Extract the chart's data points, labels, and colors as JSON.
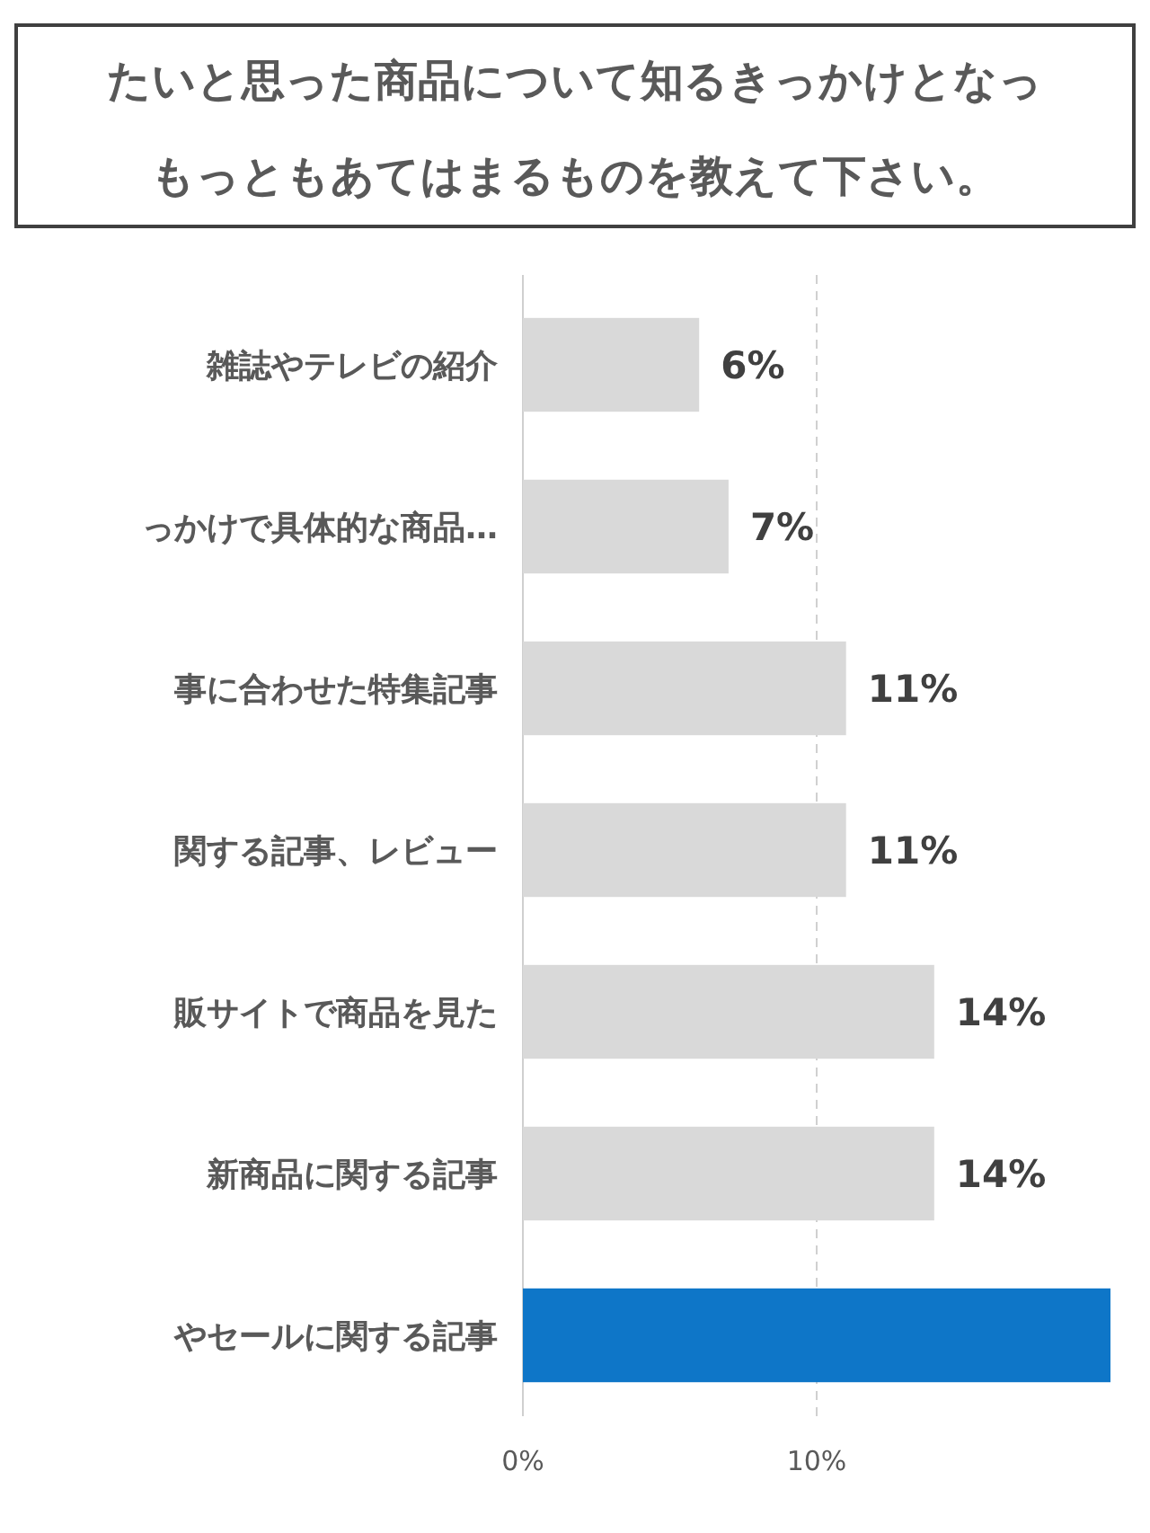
{
  "chart_data": {
    "type": "bar",
    "orientation": "horizontal",
    "title": "たいと思った商品について知るきっかけとなっ",
    "subtitle": "もっともあてはまるものを教えて下さい。",
    "categories": [
      "雑誌やテレビの紹介",
      "っかけで具体的な商品…",
      "事に合わせた特集記事",
      "関する記事、レビュー",
      "販サイトで商品を見た",
      "新商品に関する記事",
      "やセールに関する記事"
    ],
    "values": [
      6,
      7,
      11,
      11,
      14,
      14,
      20
    ],
    "colors": [
      "#d9d9d9",
      "#d9d9d9",
      "#d9d9d9",
      "#d9d9d9",
      "#d9d9d9",
      "#d9d9d9",
      "#0e76c8"
    ],
    "value_labels": [
      "6%",
      "7%",
      "11%",
      "11%",
      "14%",
      "14%",
      null
    ],
    "xlim": [
      0,
      20
    ],
    "xticks": [
      {
        "value": 0,
        "label": "0%"
      },
      {
        "value": 10,
        "label": "10%"
      }
    ],
    "grid": "x"
  }
}
